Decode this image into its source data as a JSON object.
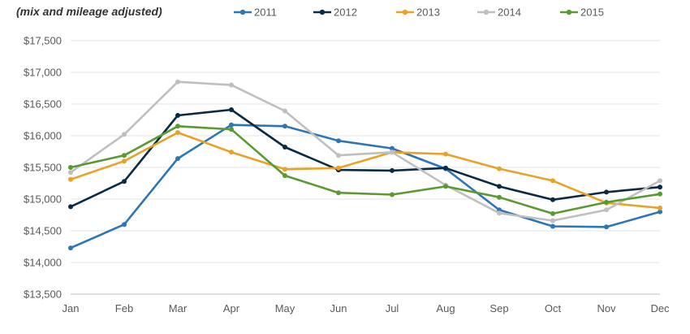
{
  "chart_data": {
    "type": "line",
    "subtitle": "(mix and mileage adjusted)",
    "categories": [
      "Jan",
      "Feb",
      "Mar",
      "Apr",
      "May",
      "Jun",
      "Jul",
      "Aug",
      "Sep",
      "Oct",
      "Nov",
      "Dec"
    ],
    "ylim": [
      13500,
      17500
    ],
    "yticks": [
      13500,
      14000,
      14500,
      15000,
      15500,
      16000,
      16500,
      17000,
      17500
    ],
    "ytick_labels": [
      "$13,500",
      "$14,000",
      "$14,500",
      "$15,000",
      "$15,500",
      "$16,000",
      "$16,500",
      "$17,000",
      "$17,500"
    ],
    "grid": true,
    "legend_position": "top",
    "series": [
      {
        "name": "2011",
        "color": "#2e75b6",
        "values": [
          14230,
          14600,
          15640,
          16170,
          16150,
          15920,
          15800,
          15480,
          14830,
          14570,
          14560,
          14800
        ]
      },
      {
        "name": "2012",
        "color": "#0b2a45",
        "values": [
          14880,
          15280,
          16320,
          16410,
          15820,
          15460,
          15450,
          15490,
          15200,
          14990,
          15110,
          15190
        ]
      },
      {
        "name": "2013",
        "color": "#e8a228",
        "values": [
          15310,
          15600,
          16050,
          15740,
          15470,
          15490,
          15740,
          15710,
          15480,
          15290,
          14940,
          14860
        ]
      },
      {
        "name": "2014",
        "color": "#bfbfbf",
        "values": [
          15420,
          16020,
          16850,
          16800,
          16390,
          15690,
          15740,
          15220,
          14780,
          14660,
          14830,
          15290
        ]
      },
      {
        "name": "2015",
        "color": "#5a9a32",
        "values": [
          15500,
          15690,
          16150,
          16100,
          15370,
          15100,
          15070,
          15200,
          15030,
          14770,
          14950,
          15080
        ]
      }
    ]
  }
}
